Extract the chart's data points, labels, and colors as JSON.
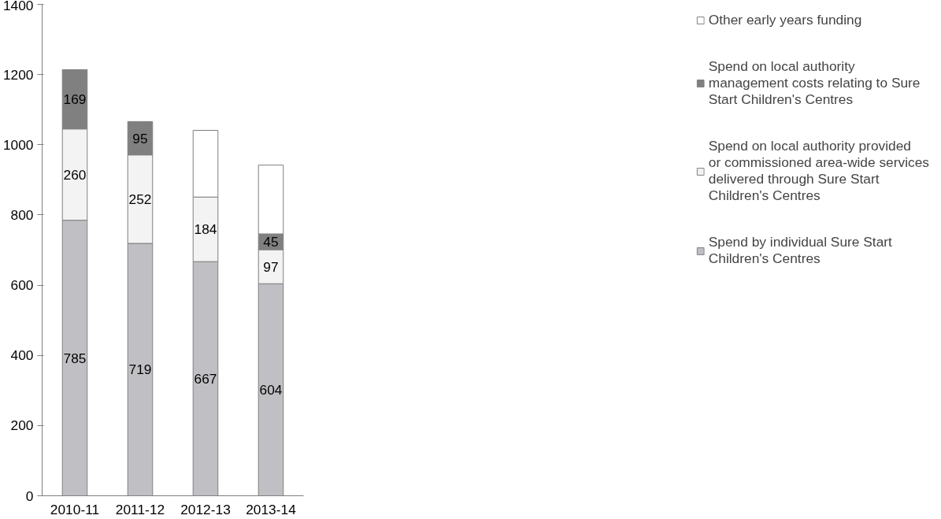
{
  "chart_data": {
    "type": "bar",
    "stacked": true,
    "categories": [
      "2010-11",
      "2011-12",
      "2012-13",
      "2013-14"
    ],
    "series": [
      {
        "name": "Spend by individual Sure Start Children's Centres",
        "color": "#c0c0c4",
        "values": [
          785,
          719,
          667,
          604
        ],
        "value_labels": [
          "785",
          "719",
          "667",
          "604"
        ]
      },
      {
        "name": "Spend on local authority provided or commissioned area-wide services delivered through Sure Start Children's Centres",
        "color": "#f2f3f2",
        "values": [
          260,
          252,
          184,
          97
        ],
        "value_labels": [
          "260",
          "252",
          "184",
          "97"
        ]
      },
      {
        "name": "Spend on local authority management costs relating to Sure Start Children's Centres",
        "color": "#808080",
        "values": [
          169,
          95,
          null,
          45
        ],
        "value_labels": [
          "169",
          "95",
          null,
          "45"
        ]
      },
      {
        "name": "Other early years funding",
        "color": "#ffffff",
        "values": [
          null,
          null,
          190,
          196
        ],
        "value_labels": [
          null,
          null,
          null,
          null
        ]
      }
    ],
    "ylim": [
      0,
      1400
    ],
    "yticks": [
      0,
      200,
      400,
      600,
      800,
      1000,
      1200,
      1400
    ],
    "grid": false,
    "legend": "right"
  }
}
